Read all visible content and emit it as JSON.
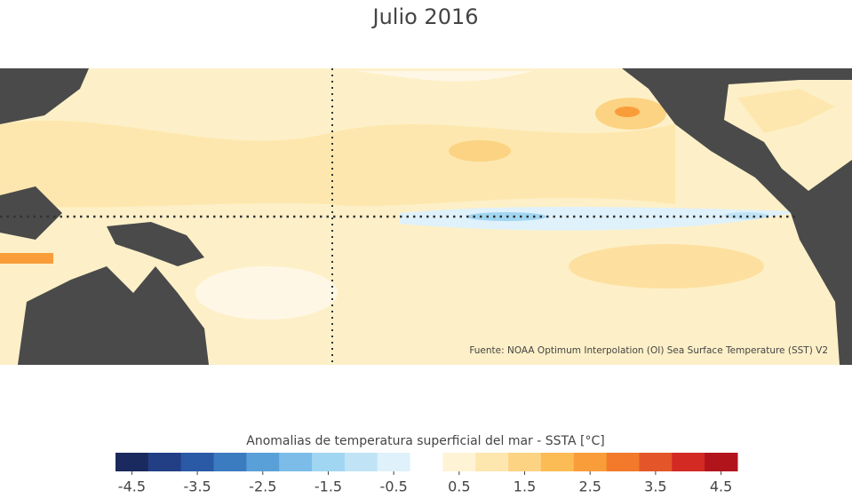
{
  "title": "Julio 2016",
  "source": "Fuente: NOAA Optimum Interpolation (OI) Sea Surface Temperature (SST) V2",
  "colorbar": {
    "label": "Anomalias de temperatura superficial del mar - SSTA  [°C]",
    "lim": [
      -4.75,
      4.75
    ],
    "ticks": [
      -4.5,
      -3.5,
      -2.5,
      -1.5,
      -0.5,
      0.5,
      1.5,
      2.5,
      3.5,
      4.5
    ],
    "colors": [
      "#1b2a5e",
      "#223f86",
      "#2a5aa6",
      "#3b7cc0",
      "#5aa0d8",
      "#7bbde8",
      "#a0d6f2",
      "#c0e4f6",
      "#dff1fa",
      "#ffffff",
      "#fff3d6",
      "#fde7ae",
      "#fcd283",
      "#fbbb55",
      "#f99d3a",
      "#f27a2a",
      "#e4562a",
      "#d32a24",
      "#b2141c"
    ]
  }
}
